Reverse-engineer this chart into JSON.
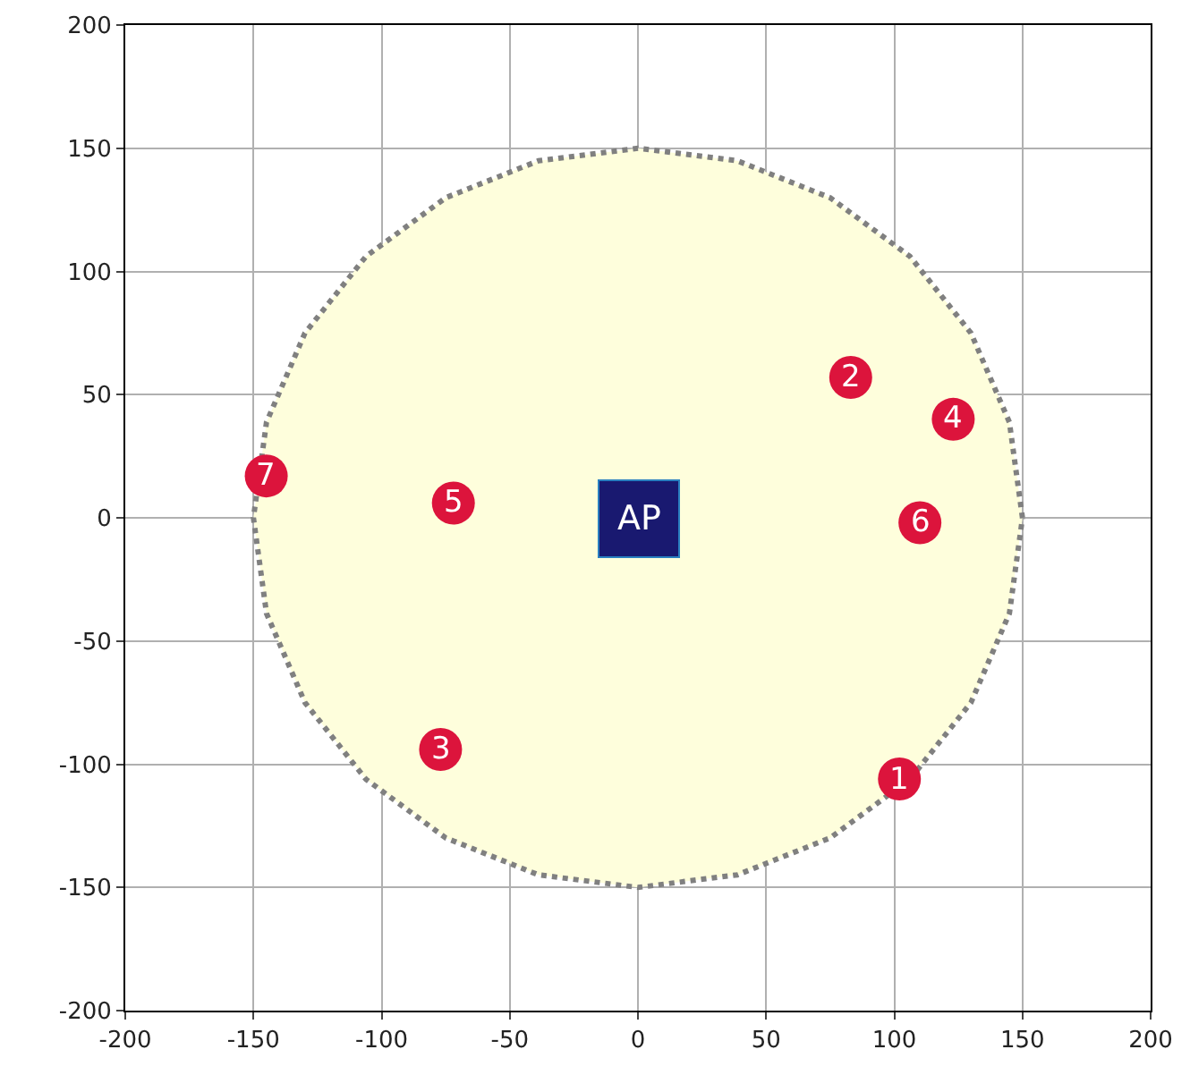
{
  "chart_data": {
    "type": "scatter",
    "xlim": [
      -200,
      200
    ],
    "ylim": [
      -200,
      200
    ],
    "xticks": [
      -200,
      -150,
      -100,
      -50,
      0,
      50,
      100,
      150,
      200
    ],
    "yticks": [
      -200,
      -150,
      -100,
      -50,
      0,
      50,
      100,
      150,
      200
    ],
    "grid": true,
    "line_style": "dotted",
    "series": [
      {
        "type": "area",
        "color": "#fefedc",
        "x": [
          150,
          144.9,
          129.9,
          106.1,
          75,
          38.8,
          0,
          -38.8,
          -75,
          -106.1,
          -129.9,
          -144.9,
          -150,
          -144.9,
          -129.9,
          -106.1,
          -75,
          -38.8,
          0,
          38.8,
          75,
          106.1,
          129.9,
          144.9,
          150
        ],
        "values": [
          0,
          38.8,
          75,
          106.1,
          129.9,
          144.9,
          150,
          144.9,
          129.9,
          106.1,
          75,
          38.8,
          0,
          -38.8,
          -75,
          -106.1,
          -129.9,
          -144.9,
          -150,
          -144.9,
          -129.9,
          -106.1,
          -75,
          -38.8,
          0
        ]
      },
      {
        "marker": "circle",
        "color": "#dc143c",
        "x": [
          102,
          83,
          -77,
          123,
          -72,
          110,
          -145
        ],
        "values": [
          -106,
          57,
          -94,
          40,
          6,
          -2,
          17
        ]
      }
    ],
    "annotations": [
      "AP",
      {
        "text": "1",
        "x": 102,
        "y": -106
      },
      {
        "text": "2",
        "x": 83,
        "y": 57
      },
      {
        "text": "3",
        "x": -77,
        "y": -94
      },
      {
        "text": "4",
        "x": 123,
        "y": 40
      },
      {
        "text": "5",
        "x": -72,
        "y": 6
      },
      {
        "text": "6",
        "x": 110,
        "y": -2
      },
      {
        "text": "7",
        "x": -145,
        "y": 17
      }
    ]
  }
}
